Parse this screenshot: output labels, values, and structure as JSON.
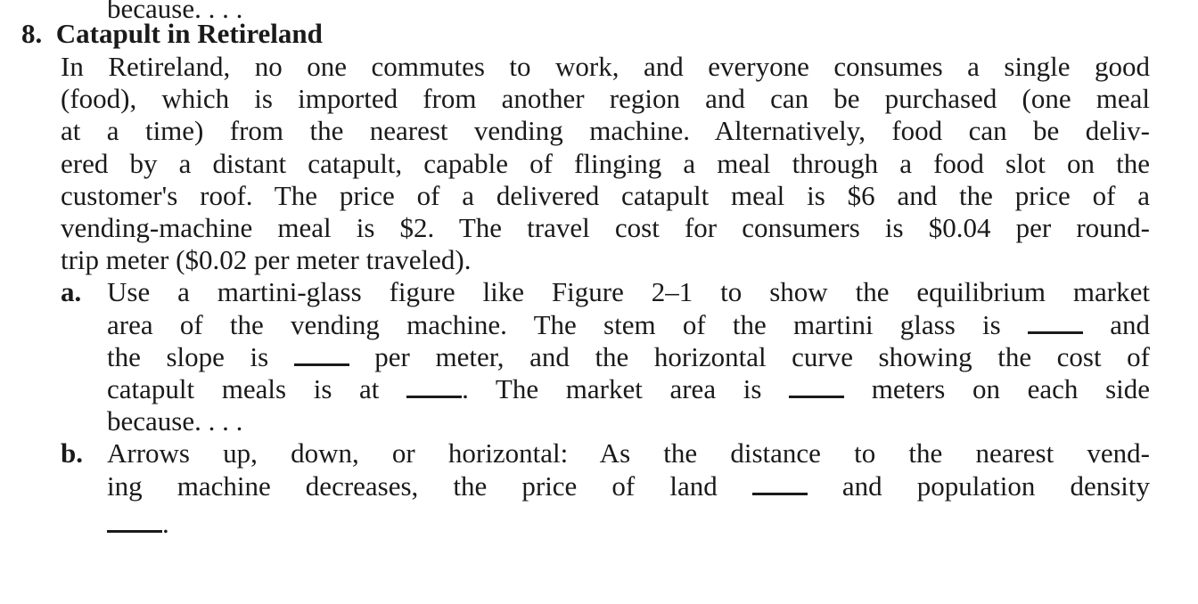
{
  "previous_fragment": "because. . . .",
  "problem": {
    "number": "8.",
    "title": "Catapult in Retireland",
    "intro_lines": [
      "In Retireland, no one commutes to work, and everyone consumes a single good",
      "(food), which is imported from another region and can be purchased (one meal",
      "at a time) from the nearest vending machine. Alternatively, food can be deliv-",
      "ered by a distant catapult, capable of flinging a meal through a food slot on the",
      "customer's roof. The price of a delivered catapult meal is $6 and the price of a",
      "vending-machine meal is $2. The travel cost for consumers is $0.04 per round-",
      "trip meter ($0.02 per meter traveled)."
    ],
    "parts": [
      {
        "label": "a.",
        "lines": [
          [
            "Use a martini-glass figure like Figure 2–1 to show the equilibrium market"
          ],
          [
            "area of the vending machine. The stem of the martini glass is ",
            "__",
            " and"
          ],
          [
            "the slope is ",
            "__",
            " per meter, and the horizontal curve showing the cost of"
          ],
          [
            "catapult meals is at ",
            "__",
            ". The market area is ",
            "__",
            " meters on each side"
          ],
          [
            "because. . . ."
          ]
        ]
      },
      {
        "label": "b.",
        "lines": [
          [
            "Arrows up, down, or horizontal: As the distance to the nearest vend-"
          ],
          [
            "ing machine decreases, the price of land ",
            "__",
            " and population density"
          ],
          [
            "__",
            "."
          ]
        ]
      }
    ]
  }
}
